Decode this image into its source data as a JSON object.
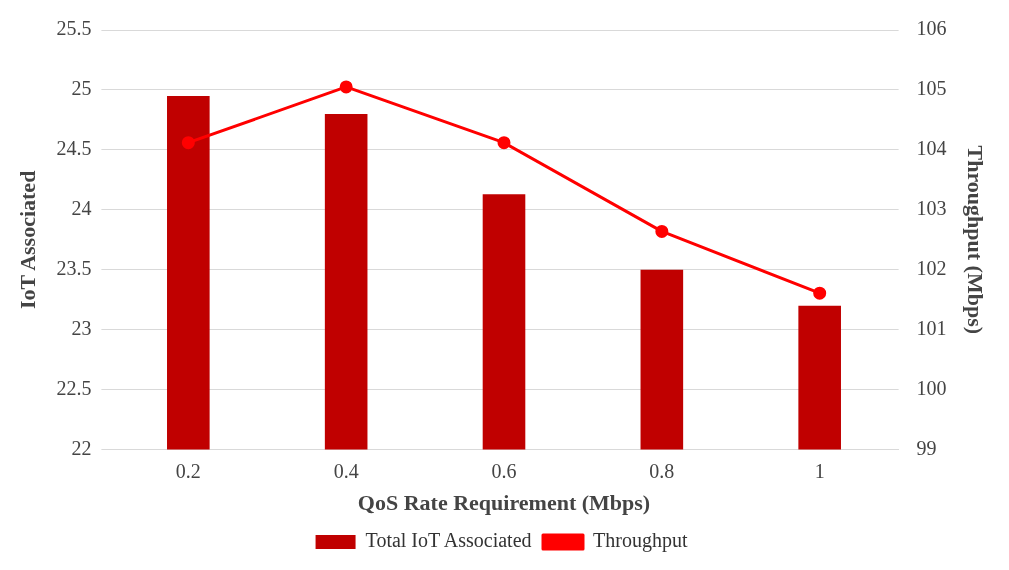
{
  "chart_data": {
    "type": "bar",
    "xlabel": "QoS Rate Requirement (Mbps)",
    "ylabel": "IoT Associated",
    "y2label": "Throughput (Mbps)",
    "categories": [
      "0.2",
      "0.4",
      "0.6",
      "0.8",
      "1"
    ],
    "series": [
      {
        "name": "Total IoT Associated",
        "color": "#c00000",
        "values": [
          24.95,
          24.8,
          24.13,
          23.5,
          23.2
        ]
      },
      {
        "name": "Throughput",
        "type": "line",
        "axis": "y2",
        "color": "#ff0000",
        "values": [
          104.12,
          105.05,
          104.12,
          102.64,
          101.61
        ]
      }
    ],
    "ylim": [
      22,
      25.5
    ],
    "yticks": [
      22,
      22.5,
      23,
      23.5,
      24,
      24.5,
      25,
      25.5
    ],
    "y2lim": [
      99,
      106
    ],
    "y2ticks": [
      99,
      100,
      101,
      102,
      103,
      104,
      105,
      106
    ],
    "grid": "y",
    "legend": "bottom",
    "marker": "circle"
  }
}
